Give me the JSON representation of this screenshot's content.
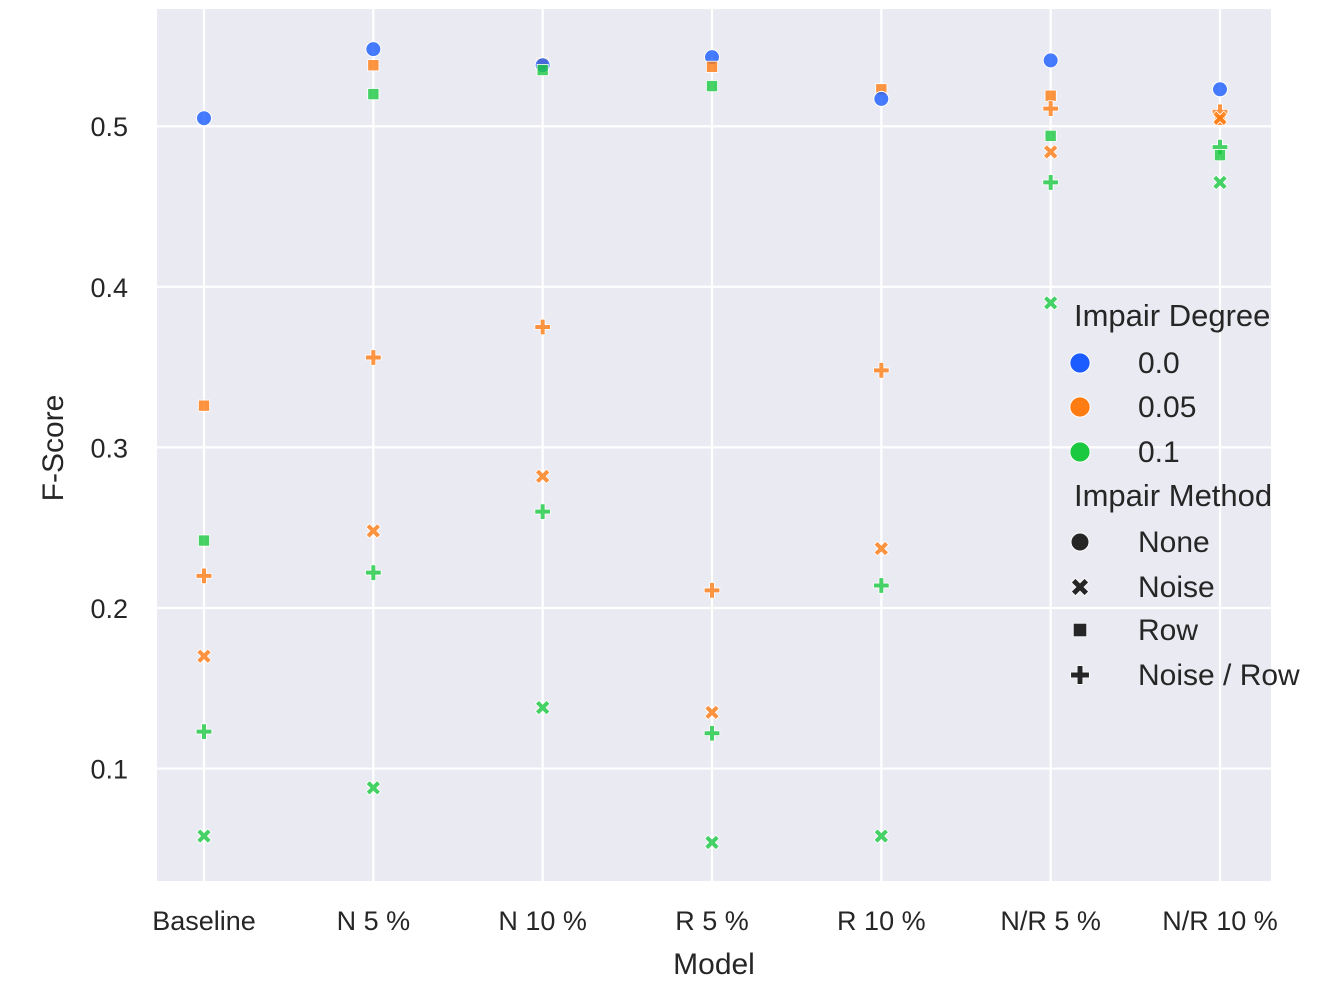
{
  "chart_data": {
    "type": "scatter",
    "title": "",
    "xlabel": "Model",
    "ylabel": "F-Score",
    "categories": [
      "Baseline",
      "N 5 %",
      "N 10 %",
      "R 5 %",
      "R 10 %",
      "N/R 5 %",
      "N/R 10 %"
    ],
    "yticks": [
      0.1,
      0.2,
      0.3,
      0.4,
      0.5
    ],
    "ytick_labels": [
      "0.1",
      "0.2",
      "0.3",
      "0.4",
      "0.5"
    ],
    "ylim": [
      0.03,
      0.573
    ],
    "grid": true,
    "legend": {
      "placement": "right",
      "hue_title": "Impair Degree",
      "hue_levels": [
        {
          "label": "0.0",
          "color": "#1a5cff"
        },
        {
          "label": "0.05",
          "color": "#ff7c12"
        },
        {
          "label": "0.1",
          "color": "#1ac940"
        }
      ],
      "style_title": "Impair Method",
      "style_levels": [
        {
          "label": "None",
          "marker": "circle"
        },
        {
          "label": "Noise",
          "marker": "x"
        },
        {
          "label": "Row",
          "marker": "square"
        },
        {
          "label": "Noise / Row",
          "marker": "plus"
        }
      ]
    },
    "points": [
      {
        "x": "Baseline",
        "y": 0.505,
        "degree": "0.0",
        "method": "None"
      },
      {
        "x": "Baseline",
        "y": 0.326,
        "degree": "0.05",
        "method": "Row"
      },
      {
        "x": "Baseline",
        "y": 0.242,
        "degree": "0.1",
        "method": "Row"
      },
      {
        "x": "Baseline",
        "y": 0.22,
        "degree": "0.05",
        "method": "Noise / Row"
      },
      {
        "x": "Baseline",
        "y": 0.17,
        "degree": "0.05",
        "method": "Noise"
      },
      {
        "x": "Baseline",
        "y": 0.123,
        "degree": "0.1",
        "method": "Noise / Row"
      },
      {
        "x": "Baseline",
        "y": 0.058,
        "degree": "0.1",
        "method": "Noise"
      },
      {
        "x": "N 5 %",
        "y": 0.548,
        "degree": "0.0",
        "method": "None"
      },
      {
        "x": "N 5 %",
        "y": 0.538,
        "degree": "0.05",
        "method": "Row"
      },
      {
        "x": "N 5 %",
        "y": 0.52,
        "degree": "0.1",
        "method": "Row"
      },
      {
        "x": "N 5 %",
        "y": 0.356,
        "degree": "0.05",
        "method": "Noise / Row"
      },
      {
        "x": "N 5 %",
        "y": 0.248,
        "degree": "0.05",
        "method": "Noise"
      },
      {
        "x": "N 5 %",
        "y": 0.222,
        "degree": "0.1",
        "method": "Noise / Row"
      },
      {
        "x": "N 5 %",
        "y": 0.088,
        "degree": "0.1",
        "method": "Noise"
      },
      {
        "x": "N 10 %",
        "y": 0.539,
        "degree": "0.05",
        "method": "Row"
      },
      {
        "x": "N 10 %",
        "y": 0.538,
        "degree": "0.0",
        "method": "None"
      },
      {
        "x": "N 10 %",
        "y": 0.535,
        "degree": "0.1",
        "method": "Row"
      },
      {
        "x": "N 10 %",
        "y": 0.375,
        "degree": "0.05",
        "method": "Noise / Row"
      },
      {
        "x": "N 10 %",
        "y": 0.282,
        "degree": "0.05",
        "method": "Noise"
      },
      {
        "x": "N 10 %",
        "y": 0.26,
        "degree": "0.1",
        "method": "Noise / Row"
      },
      {
        "x": "N 10 %",
        "y": 0.138,
        "degree": "0.1",
        "method": "Noise"
      },
      {
        "x": "R 5 %",
        "y": 0.543,
        "degree": "0.0",
        "method": "None"
      },
      {
        "x": "R 5 %",
        "y": 0.537,
        "degree": "0.05",
        "method": "Row"
      },
      {
        "x": "R 5 %",
        "y": 0.525,
        "degree": "0.1",
        "method": "Row"
      },
      {
        "x": "R 5 %",
        "y": 0.211,
        "degree": "0.05",
        "method": "Noise / Row"
      },
      {
        "x": "R 5 %",
        "y": 0.135,
        "degree": "0.05",
        "method": "Noise"
      },
      {
        "x": "R 5 %",
        "y": 0.122,
        "degree": "0.1",
        "method": "Noise / Row"
      },
      {
        "x": "R 5 %",
        "y": 0.054,
        "degree": "0.1",
        "method": "Noise"
      },
      {
        "x": "R 10 %",
        "y": 0.523,
        "degree": "0.05",
        "method": "Row"
      },
      {
        "x": "R 10 %",
        "y": 0.517,
        "degree": "0.0",
        "method": "None"
      },
      {
        "x": "R 10 %",
        "y": 0.348,
        "degree": "0.05",
        "method": "Noise / Row"
      },
      {
        "x": "R 10 %",
        "y": 0.237,
        "degree": "0.05",
        "method": "Noise"
      },
      {
        "x": "R 10 %",
        "y": 0.214,
        "degree": "0.1",
        "method": "Noise / Row"
      },
      {
        "x": "R 10 %",
        "y": 0.058,
        "degree": "0.1",
        "method": "Noise"
      },
      {
        "x": "N/R 5 %",
        "y": 0.541,
        "degree": "0.0",
        "method": "None"
      },
      {
        "x": "N/R 5 %",
        "y": 0.519,
        "degree": "0.05",
        "method": "Row"
      },
      {
        "x": "N/R 5 %",
        "y": 0.511,
        "degree": "0.05",
        "method": "Noise / Row"
      },
      {
        "x": "N/R 5 %",
        "y": 0.494,
        "degree": "0.1",
        "method": "Row"
      },
      {
        "x": "N/R 5 %",
        "y": 0.484,
        "degree": "0.05",
        "method": "Noise"
      },
      {
        "x": "N/R 5 %",
        "y": 0.465,
        "degree": "0.1",
        "method": "Noise / Row"
      },
      {
        "x": "N/R 5 %",
        "y": 0.39,
        "degree": "0.1",
        "method": "Noise"
      },
      {
        "x": "N/R 10 %",
        "y": 0.523,
        "degree": "0.0",
        "method": "None"
      },
      {
        "x": "N/R 10 %",
        "y": 0.509,
        "degree": "0.05",
        "method": "Noise / Row"
      },
      {
        "x": "N/R 10 %",
        "y": 0.504,
        "degree": "0.05",
        "method": "Row"
      },
      {
        "x": "N/R 10 %",
        "y": 0.505,
        "degree": "0.05",
        "method": "Noise"
      },
      {
        "x": "N/R 10 %",
        "y": 0.487,
        "degree": "0.1",
        "method": "Noise / Row"
      },
      {
        "x": "N/R 10 %",
        "y": 0.482,
        "degree": "0.1",
        "method": "Row"
      },
      {
        "x": "N/R 10 %",
        "y": 0.465,
        "degree": "0.1",
        "method": "Noise"
      }
    ]
  }
}
